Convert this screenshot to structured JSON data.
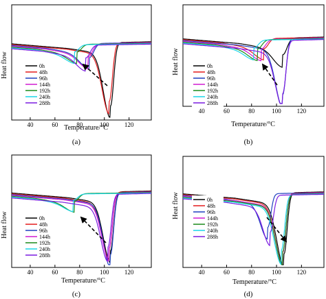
{
  "chart_data": [
    {
      "type": "line",
      "panel_label": "(a)",
      "xlabel": "Temperature/°C",
      "ylabel": "Heat flow",
      "xlim": [
        25,
        138
      ],
      "x_ticks": [
        "40",
        "60",
        "80",
        "100",
        "120"
      ],
      "arrow_direction": "up-left",
      "series": [
        {
          "name": "0h",
          "color": "#000000",
          "peak_x": 105,
          "peak_depth": 1.0,
          "onset_x": 96
        },
        {
          "name": "48h",
          "color": "#e41a1c",
          "peak_x": 104,
          "peak_depth": 0.92,
          "onset_x": 94
        },
        {
          "name": "96h",
          "color": "#1f3fbf",
          "peak_x": 88,
          "peak_depth": 0.22,
          "onset_x": 78
        },
        {
          "name": "144h",
          "color": "#d01ad0",
          "peak_x": 87,
          "peak_depth": 0.2,
          "onset_x": 77
        },
        {
          "name": "192h",
          "color": "#1a8a1a",
          "peak_x": 78,
          "peak_depth": 0.12,
          "onset_x": 70
        },
        {
          "name": "240h",
          "color": "#19d5e8",
          "peak_x": 76,
          "peak_depth": 0.11,
          "onset_x": 68
        },
        {
          "name": "288h",
          "color": "#7a1ae0",
          "peak_x": 85,
          "peak_depth": 0.2,
          "onset_x": 75
        }
      ]
    },
    {
      "type": "line",
      "panel_label": "(b)",
      "xlabel": "Temperature/°C",
      "ylabel": "Heat flow",
      "xlim": [
        25,
        138
      ],
      "x_ticks": [
        "40",
        "60",
        "80",
        "100",
        "120"
      ],
      "arrow_direction": "up-left",
      "series": [
        {
          "name": "0h",
          "color": "#000000",
          "peak_x": 105,
          "peak_depth": 0.3,
          "onset_x": 95
        },
        {
          "name": "48h",
          "color": "#e41a1c",
          "peak_x": 90,
          "peak_depth": 0.18,
          "onset_x": 80
        },
        {
          "name": "96h",
          "color": "#1f3fbf",
          "peak_x": 105,
          "peak_depth": 1.0,
          "onset_x": 94
        },
        {
          "name": "144h",
          "color": "#d01ad0",
          "peak_x": 88,
          "peak_depth": 0.17,
          "onset_x": 78
        },
        {
          "name": "192h",
          "color": "#1a8a1a",
          "peak_x": 85,
          "peak_depth": 0.16,
          "onset_x": 76
        },
        {
          "name": "240h",
          "color": "#19d5e8",
          "peak_x": 82,
          "peak_depth": 0.14,
          "onset_x": 74
        },
        {
          "name": "288h",
          "color": "#7a1ae0",
          "peak_x": 105,
          "peak_depth": 0.95,
          "onset_x": 94
        }
      ]
    },
    {
      "type": "line",
      "panel_label": "(c)",
      "xlabel": "Temperature/°C",
      "ylabel": "Heat flow",
      "xlim": [
        25,
        138
      ],
      "x_ticks": [
        "40",
        "60",
        "80",
        "100",
        "120"
      ],
      "arrow_direction": "up-left",
      "series": [
        {
          "name": "0h",
          "color": "#000000",
          "peak_x": 105,
          "peak_depth": 0.95,
          "onset_x": 96
        },
        {
          "name": "48h",
          "color": "#e41a1c",
          "peak_x": 104,
          "peak_depth": 0.9,
          "onset_x": 93
        },
        {
          "name": "96h",
          "color": "#1f3fbf",
          "peak_x": 105,
          "peak_depth": 1.0,
          "onset_x": 93
        },
        {
          "name": "144h",
          "color": "#d01ad0",
          "peak_x": 104,
          "peak_depth": 0.88,
          "onset_x": 92
        },
        {
          "name": "192h",
          "color": "#1a8a1a",
          "peak_x": 76,
          "peak_depth": 0.12,
          "onset_x": 68
        },
        {
          "name": "240h",
          "color": "#19d5e8",
          "peak_x": 75,
          "peak_depth": 0.1,
          "onset_x": 67
        },
        {
          "name": "288h",
          "color": "#7a1ae0",
          "peak_x": 103,
          "peak_depth": 0.85,
          "onset_x": 91
        }
      ]
    },
    {
      "type": "line",
      "panel_label": "(d)",
      "xlabel": "Temperature/°C",
      "ylabel": "Heat flow",
      "xlim": [
        25,
        138
      ],
      "x_ticks": [
        "40",
        "60",
        "80",
        "100",
        "120"
      ],
      "arrow_direction": "down-right",
      "series": [
        {
          "name": "0h",
          "color": "#000000",
          "peak_x": 106,
          "peak_depth": 1.0,
          "onset_x": 92
        },
        {
          "name": "48h",
          "color": "#e41a1c",
          "peak_x": 105,
          "peak_depth": 0.97,
          "onset_x": 91
        },
        {
          "name": "96h",
          "color": "#1f3fbf",
          "peak_x": 93,
          "peak_depth": 0.55,
          "onset_x": 82
        },
        {
          "name": "144h",
          "color": "#d01ad0",
          "peak_x": 105,
          "peak_depth": 0.95,
          "onset_x": 91
        },
        {
          "name": "192h",
          "color": "#1a8a1a",
          "peak_x": 105,
          "peak_depth": 0.93,
          "onset_x": 91
        },
        {
          "name": "240h",
          "color": "#19d5e8",
          "peak_x": 104,
          "peak_depth": 0.9,
          "onset_x": 90
        },
        {
          "name": "288h",
          "color": "#7a1ae0",
          "peak_x": 95,
          "peak_depth": 0.6,
          "onset_x": 84
        }
      ]
    }
  ]
}
